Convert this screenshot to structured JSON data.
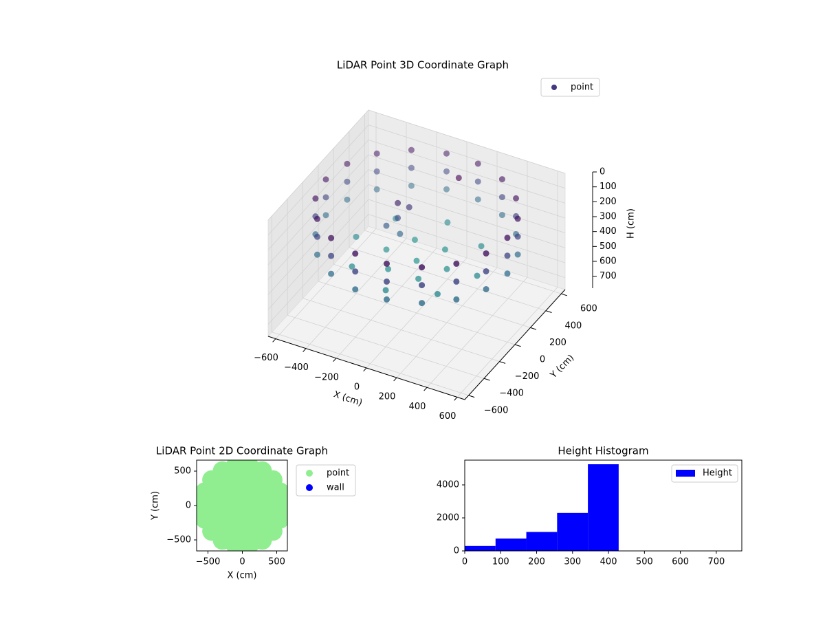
{
  "chart_data": [
    {
      "type": "scatter3d",
      "title": "LiDAR Point 3D Coordinate Graph",
      "xlabel": "X (cm)",
      "ylabel": "Y (cm)",
      "zlabel": "H (cm)",
      "xlim": [
        -650,
        650
      ],
      "ylim": [
        -650,
        650
      ],
      "zlim": [
        780,
        0
      ],
      "xticks": [
        {
          "value": -600,
          "label": "−600"
        },
        {
          "value": -400,
          "label": "−400"
        },
        {
          "value": -200,
          "label": "−200"
        },
        0,
        200,
        400,
        600
      ],
      "yticks": [
        {
          "value": -600,
          "label": "−600"
        },
        {
          "value": -400,
          "label": "−400"
        },
        {
          "value": -200,
          "label": "−200"
        },
        0,
        200,
        400,
        600
      ],
      "zticks": [
        0,
        100,
        200,
        300,
        400,
        500,
        600,
        700
      ],
      "colormap": [
        "#440154",
        "#3b528b",
        "#21918c"
      ],
      "legend": "upper right",
      "grid": true,
      "series": [
        {
          "name": "point",
          "color": "#453781",
          "x": [
            600,
            564,
            460,
            300,
            104,
            -104,
            -300,
            -460,
            -564,
            -600,
            -564,
            -460,
            -300,
            -104,
            104,
            300,
            460,
            564,
            600,
            564,
            460,
            300,
            104,
            -104,
            -300,
            -460,
            -564,
            -600,
            -564,
            -460,
            -300,
            -104,
            104,
            300,
            460,
            564,
            600,
            564,
            460,
            300,
            104,
            -104,
            -300,
            -460,
            -564,
            -600,
            -564,
            -460,
            -300,
            -104,
            104,
            300,
            460,
            564,
            200,
            100,
            -100,
            -200,
            -100,
            100,
            400,
            283,
            0,
            -283,
            -400,
            -283,
            0,
            283,
            0,
            -150,
            -150,
            -100,
            -200,
            -120,
            100
          ],
          "y": [
            0,
            205,
            386,
            520,
            591,
            591,
            520,
            386,
            205,
            0,
            -205,
            -386,
            -520,
            -591,
            -591,
            -520,
            -386,
            -205,
            0,
            205,
            386,
            520,
            591,
            591,
            520,
            386,
            205,
            0,
            -205,
            -386,
            -520,
            -591,
            -591,
            -520,
            -386,
            -205,
            0,
            205,
            386,
            520,
            591,
            591,
            520,
            386,
            205,
            0,
            -205,
            -386,
            -520,
            -591,
            -591,
            -520,
            -386,
            -205,
            0,
            173,
            173,
            0,
            -173,
            -173,
            0,
            283,
            400,
            283,
            0,
            -283,
            -400,
            -283,
            0,
            50,
            50,
            100,
            0,
            20,
            350
          ],
          "z": [
            80,
            80,
            80,
            80,
            80,
            80,
            80,
            80,
            80,
            80,
            80,
            80,
            80,
            80,
            80,
            80,
            80,
            80,
            200,
            200,
            200,
            200,
            200,
            200,
            200,
            200,
            200,
            200,
            200,
            200,
            200,
            200,
            200,
            200,
            200,
            200,
            320,
            320,
            320,
            320,
            320,
            320,
            320,
            320,
            320,
            320,
            320,
            320,
            320,
            320,
            320,
            320,
            320,
            320,
            420,
            420,
            420,
            420,
            420,
            420,
            400,
            400,
            400,
            400,
            400,
            400,
            400,
            400,
            430,
            120,
            220,
            160,
            260,
            300,
            40
          ]
        }
      ]
    },
    {
      "type": "scatter",
      "title": "LiDAR Point 2D Coordinate Graph",
      "xlabel": "X (cm)",
      "ylabel": "Y (cm)",
      "xlim": [
        -665,
        655
      ],
      "ylim": [
        -660,
        660
      ],
      "xticks": [
        {
          "value": -500,
          "label": "−500"
        },
        0,
        500
      ],
      "yticks": [
        {
          "value": -500,
          "label": "−500"
        },
        0,
        500
      ],
      "legend": "outside upper right",
      "series": [
        {
          "name": "point",
          "color": "#90ee90",
          "x": [
            0,
            200,
            100,
            -100,
            -200,
            -100,
            100,
            400,
            346,
            200,
            0,
            -200,
            -346,
            -400,
            -346,
            -200,
            0,
            200,
            346,
            580,
            545,
            444,
            290,
            101,
            -101,
            -290,
            -444,
            -545,
            -580,
            -545,
            -444,
            -290,
            -101,
            101,
            290,
            444,
            545
          ],
          "y": [
            0,
            0,
            173,
            173,
            0,
            -173,
            -173,
            0,
            200,
            346,
            400,
            346,
            200,
            0,
            -200,
            -346,
            -400,
            -346,
            -200,
            0,
            198,
            373,
            503,
            571,
            571,
            503,
            373,
            198,
            0,
            -198,
            -373,
            -503,
            -571,
            -571,
            -503,
            -373,
            -198
          ]
        },
        {
          "name": "wall",
          "color": "#0000ff",
          "x": [],
          "y": []
        }
      ]
    },
    {
      "type": "histogram",
      "title": "Height Histogram",
      "bins": [
        0,
        85.7,
        171.3,
        257,
        342.7,
        428.3,
        514,
        599.7,
        685.3,
        771
      ],
      "counts": [
        300,
        750,
        1150,
        2300,
        5250,
        0,
        0,
        0,
        5
      ],
      "series_name": "Height",
      "color": "#0000ff",
      "xlim": [
        0,
        771
      ],
      "ylim": [
        0,
        5500
      ],
      "xticks": [
        0,
        100,
        200,
        300,
        400,
        500,
        600,
        700
      ],
      "yticks": [
        0,
        2000,
        4000
      ],
      "legend": "upper right"
    }
  ]
}
